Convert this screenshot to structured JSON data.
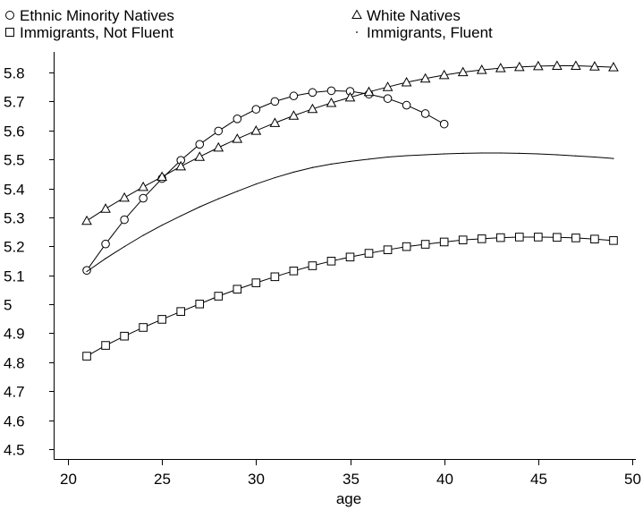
{
  "chart_data": {
    "type": "line",
    "title": "",
    "xlabel": "age",
    "ylabel": "",
    "xlim": [
      20,
      50
    ],
    "ylim": [
      4.45,
      5.86
    ],
    "x_ticks": [
      20,
      25,
      30,
      35,
      40,
      45,
      50
    ],
    "y_ticks": [
      4.5,
      4.6,
      4.7,
      4.8,
      4.9,
      5,
      5.1,
      5.2,
      5.3,
      5.4,
      5.5,
      5.6,
      5.7,
      5.8
    ],
    "x_tick_labels": [
      "20",
      "25",
      "30",
      "35",
      "40",
      "45",
      "50"
    ],
    "y_tick_labels": [
      "4.5",
      "4.6",
      "4.7",
      "4.8",
      "4.9",
      "5",
      "5.1",
      "5.2",
      "5.3",
      "5.4",
      "5.5",
      "5.6",
      "5.7",
      "5.8"
    ],
    "grid": false,
    "legend_position": "top",
    "series": [
      {
        "name": "Ethnic Minority Natives",
        "marker": "circle",
        "x": [
          21,
          22,
          23,
          24,
          25,
          26,
          27,
          28,
          29,
          30,
          31,
          32,
          33,
          34,
          35,
          36,
          37,
          38,
          39,
          40
        ],
        "values": [
          5.117,
          5.208,
          5.292,
          5.366,
          5.434,
          5.497,
          5.552,
          5.598,
          5.64,
          5.673,
          5.7,
          5.719,
          5.731,
          5.737,
          5.735,
          5.725,
          5.71,
          5.687,
          5.658,
          5.622
        ]
      },
      {
        "name": "White Natives",
        "marker": "triangle",
        "x": [
          21,
          22,
          23,
          24,
          25,
          26,
          27,
          28,
          29,
          30,
          31,
          32,
          33,
          34,
          35,
          36,
          37,
          38,
          39,
          40,
          41,
          42,
          43,
          44,
          45,
          46,
          47,
          48,
          49
        ],
        "values": [
          5.288,
          5.33,
          5.368,
          5.405,
          5.44,
          5.476,
          5.509,
          5.541,
          5.571,
          5.599,
          5.626,
          5.651,
          5.674,
          5.695,
          5.714,
          5.733,
          5.75,
          5.766,
          5.779,
          5.791,
          5.801,
          5.809,
          5.815,
          5.819,
          5.822,
          5.823,
          5.823,
          5.821,
          5.818
        ]
      },
      {
        "name": "Immigrants, Not Fluent",
        "marker": "square",
        "x": [
          21,
          22,
          23,
          24,
          25,
          26,
          27,
          28,
          29,
          30,
          31,
          32,
          33,
          34,
          35,
          36,
          37,
          38,
          39,
          40,
          41,
          42,
          43,
          44,
          45,
          46,
          47,
          48,
          49
        ],
        "values": [
          4.821,
          4.858,
          4.89,
          4.92,
          4.948,
          4.975,
          5.001,
          5.028,
          5.052,
          5.074,
          5.095,
          5.115,
          5.133,
          5.149,
          5.163,
          5.176,
          5.188,
          5.199,
          5.207,
          5.215,
          5.222,
          5.226,
          5.23,
          5.232,
          5.232,
          5.231,
          5.229,
          5.225,
          5.22
        ]
      },
      {
        "name": "Immigrants, Fluent",
        "marker": "dot",
        "x": [
          21,
          22,
          23,
          24,
          25,
          26,
          27,
          28,
          29,
          30,
          31,
          32,
          33,
          34,
          35,
          36,
          37,
          38,
          39,
          40,
          41,
          42,
          43,
          44,
          45,
          46,
          47,
          48,
          49
        ],
        "values": [
          5.113,
          5.158,
          5.199,
          5.238,
          5.273,
          5.305,
          5.336,
          5.364,
          5.39,
          5.415,
          5.437,
          5.456,
          5.472,
          5.484,
          5.493,
          5.501,
          5.508,
          5.513,
          5.516,
          5.519,
          5.521,
          5.522,
          5.522,
          5.521,
          5.519,
          5.516,
          5.512,
          5.508,
          5.503
        ]
      }
    ]
  }
}
